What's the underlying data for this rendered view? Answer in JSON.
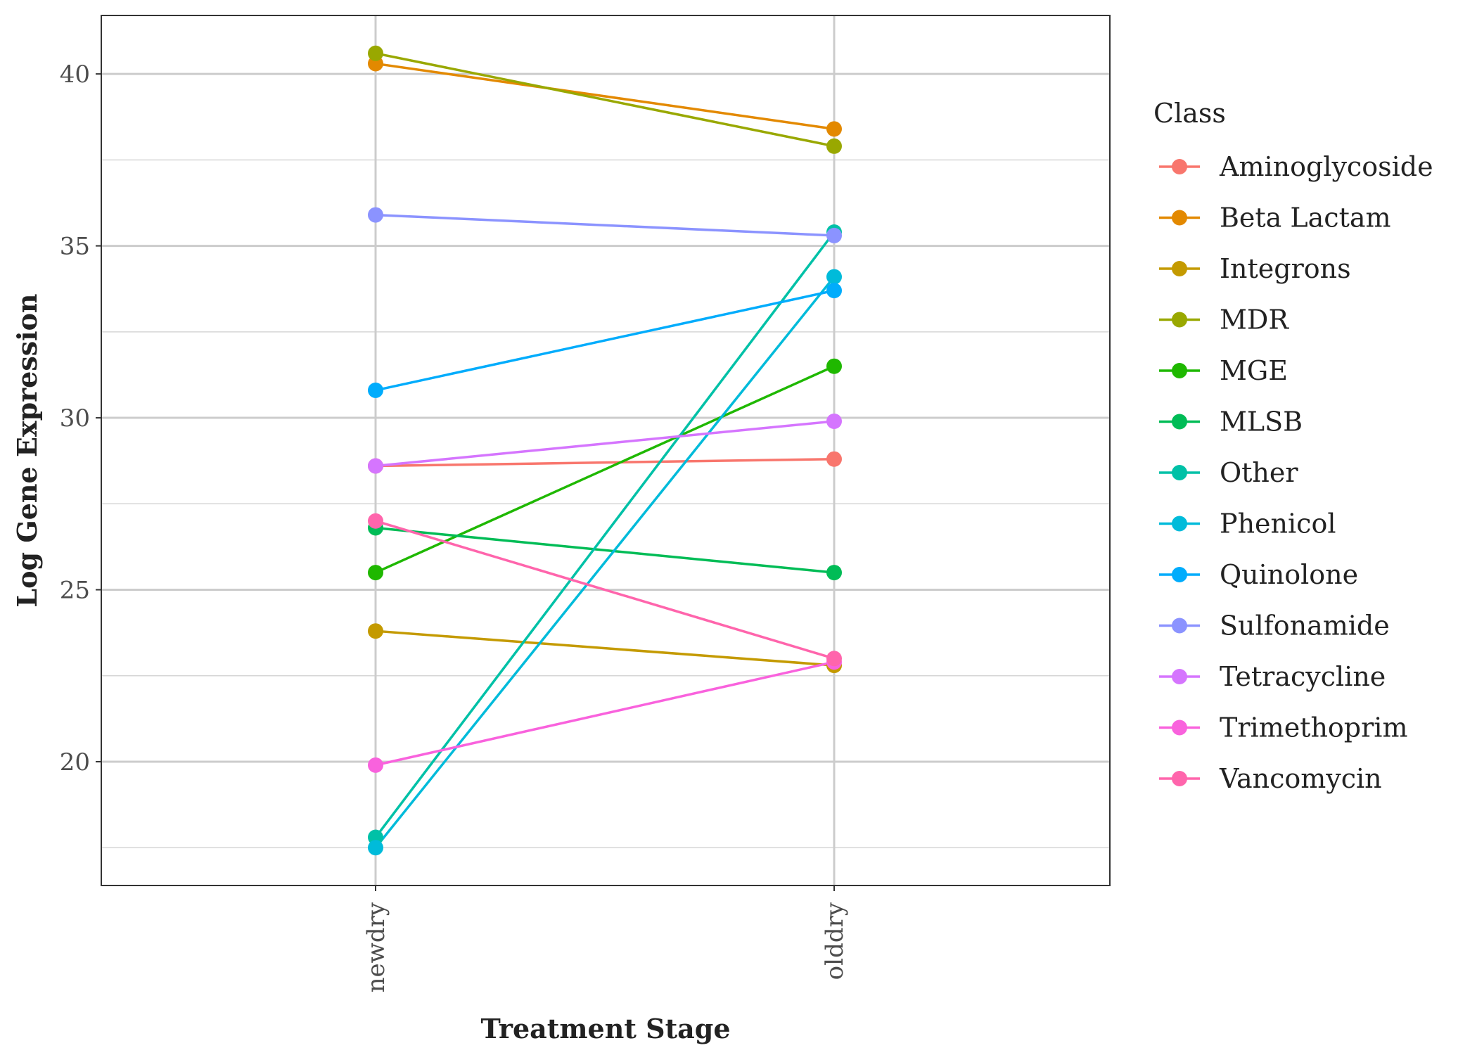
{
  "chart_data": {
    "type": "line",
    "xlabel": "Treatment Stage",
    "ylabel": "Log Gene Expression",
    "categories": [
      "newdry",
      "olddry"
    ],
    "ylim": [
      16.4,
      41.7
    ],
    "yticks": [
      20,
      25,
      30,
      35,
      40
    ],
    "grid": true,
    "legend": {
      "title": "Class",
      "placement": "right"
    },
    "series": [
      {
        "name": "Aminoglycoside",
        "color": "#F8766D",
        "values": [
          28.6,
          28.8
        ]
      },
      {
        "name": "Beta Lactam",
        "color": "#E38900",
        "values": [
          40.3,
          38.4
        ]
      },
      {
        "name": "Integrons",
        "color": "#C49A00",
        "values": [
          23.8,
          22.8
        ]
      },
      {
        "name": "MDR",
        "color": "#99A800",
        "values": [
          40.6,
          37.9
        ]
      },
      {
        "name": "MGE",
        "color": "#1FB800",
        "values": [
          25.5,
          31.5
        ]
      },
      {
        "name": "MLSB",
        "color": "#00BC56",
        "values": [
          26.8,
          25.5
        ]
      },
      {
        "name": "Other",
        "color": "#00C1A7",
        "values": [
          17.8,
          35.4
        ]
      },
      {
        "name": "Phenicol",
        "color": "#00BBDA",
        "values": [
          17.5,
          34.1
        ]
      },
      {
        "name": "Quinolone",
        "color": "#00ACFC",
        "values": [
          30.8,
          33.7
        ]
      },
      {
        "name": "Sulfonamide",
        "color": "#8B93FF",
        "values": [
          35.9,
          35.3
        ]
      },
      {
        "name": "Tetracycline",
        "color": "#D575FE",
        "values": [
          28.6,
          29.9
        ]
      },
      {
        "name": "Trimethoprim",
        "color": "#F962DD",
        "values": [
          19.9,
          22.9
        ]
      },
      {
        "name": "Vancomycin",
        "color": "#FF65AC",
        "values": [
          27.0,
          23.0
        ]
      }
    ]
  }
}
